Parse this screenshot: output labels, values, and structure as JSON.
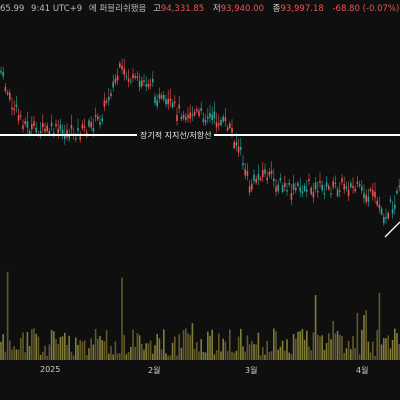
{
  "header": {
    "price_fragment": "65.99",
    "time_fragment": "9:41 UTC+9",
    "status_text": "에 퍼블리쉬됐음",
    "high_label": "고",
    "high_value": "94,331.85",
    "low_label": "저",
    "low_value": "93,940.00",
    "close_label": "종",
    "close_value": "93,997.18",
    "change_text": "-68.80 (-0.07%)"
  },
  "annotation": {
    "support_label": "장기적 지지선/저항선"
  },
  "time_axis": {
    "labels": [
      "2025",
      "2월",
      "3월",
      "4월"
    ]
  },
  "colors": {
    "background": "#0f0f0f",
    "up": "#26a69a",
    "down": "#ef5350",
    "volume_up": "#8e8a3c",
    "volume_down": "#6b5f2e",
    "level_line": "#ffffff"
  },
  "chart_data": {
    "type": "candlestick",
    "xlabel": "",
    "ylabel": "",
    "x": [
      "2025",
      "2월",
      "3월",
      "4월"
    ],
    "support_resistance_label": "장기적 지지선/저항선",
    "has_volume_pane": true,
    "grid": false
  }
}
